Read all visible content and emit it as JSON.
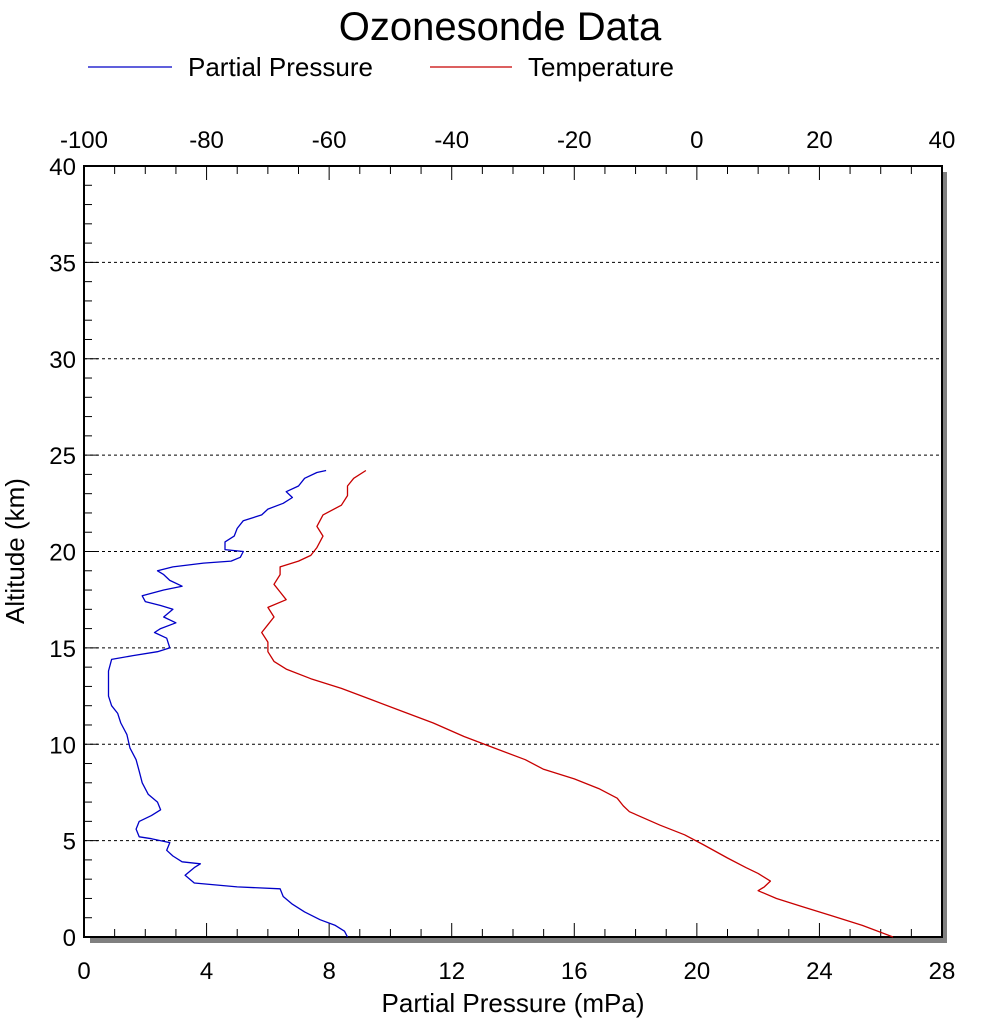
{
  "chart_data": {
    "type": "line",
    "title": "Ozonesonde Data",
    "xlabel": "Partial Pressure (mPa)",
    "ylabel": "Altitude (km)",
    "x_bottom_range": [
      0,
      28
    ],
    "x_top_range": [
      -100,
      40
    ],
    "ylim": [
      0,
      40
    ],
    "x_bottom_ticks": [
      "0",
      "4",
      "8",
      "12",
      "16",
      "20",
      "24",
      "28"
    ],
    "x_top_ticks": [
      "-100",
      "-80",
      "-60",
      "-40",
      "-20",
      "0",
      "20",
      "40"
    ],
    "y_ticks": [
      "0",
      "5",
      "10",
      "15",
      "20",
      "25",
      "30",
      "35",
      "40"
    ],
    "grid": "horizontal dotted",
    "legend_position": "top",
    "series": [
      {
        "name": "Partial Pressure",
        "axis": "bottom",
        "color": "#0000c8",
        "points": [
          [
            8.6,
            0.0
          ],
          [
            8.5,
            0.3
          ],
          [
            8.2,
            0.6
          ],
          [
            7.7,
            0.9
          ],
          [
            7.2,
            1.3
          ],
          [
            6.8,
            1.7
          ],
          [
            6.5,
            2.1
          ],
          [
            6.4,
            2.5
          ],
          [
            5.0,
            2.6
          ],
          [
            3.6,
            2.8
          ],
          [
            3.3,
            3.2
          ],
          [
            3.6,
            3.6
          ],
          [
            3.8,
            3.8
          ],
          [
            3.2,
            3.9
          ],
          [
            2.9,
            4.2
          ],
          [
            2.7,
            4.5
          ],
          [
            2.8,
            4.9
          ],
          [
            2.2,
            5.1
          ],
          [
            1.8,
            5.2
          ],
          [
            1.7,
            5.6
          ],
          [
            1.8,
            6.0
          ],
          [
            2.2,
            6.3
          ],
          [
            2.5,
            6.6
          ],
          [
            2.4,
            7.0
          ],
          [
            2.1,
            7.4
          ],
          [
            1.9,
            8.0
          ],
          [
            1.8,
            8.6
          ],
          [
            1.7,
            9.2
          ],
          [
            1.5,
            9.8
          ],
          [
            1.4,
            10.5
          ],
          [
            1.2,
            11.1
          ],
          [
            1.1,
            11.6
          ],
          [
            0.9,
            12.0
          ],
          [
            0.8,
            12.5
          ],
          [
            0.8,
            13.2
          ],
          [
            0.8,
            13.8
          ],
          [
            0.9,
            14.4
          ],
          [
            1.6,
            14.6
          ],
          [
            2.4,
            14.8
          ],
          [
            2.8,
            15.0
          ],
          [
            2.7,
            15.5
          ],
          [
            2.3,
            15.8
          ],
          [
            2.5,
            16.0
          ],
          [
            3.0,
            16.3
          ],
          [
            2.6,
            16.6
          ],
          [
            2.9,
            17.0
          ],
          [
            2.5,
            17.2
          ],
          [
            2.0,
            17.4
          ],
          [
            1.9,
            17.7
          ],
          [
            2.6,
            18.0
          ],
          [
            3.2,
            18.2
          ],
          [
            2.8,
            18.5
          ],
          [
            2.6,
            18.8
          ],
          [
            2.4,
            19.0
          ],
          [
            2.9,
            19.2
          ],
          [
            3.9,
            19.4
          ],
          [
            4.8,
            19.5
          ],
          [
            5.1,
            19.7
          ],
          [
            5.2,
            20.0
          ],
          [
            4.6,
            20.1
          ],
          [
            4.6,
            20.5
          ],
          [
            4.9,
            20.8
          ],
          [
            5.0,
            21.2
          ],
          [
            5.2,
            21.6
          ],
          [
            5.8,
            21.9
          ],
          [
            6.0,
            22.2
          ],
          [
            6.5,
            22.5
          ],
          [
            6.8,
            22.8
          ],
          [
            6.6,
            23.1
          ],
          [
            7.0,
            23.4
          ],
          [
            7.2,
            23.8
          ],
          [
            7.6,
            24.1
          ],
          [
            7.9,
            24.2
          ]
        ]
      },
      {
        "name": "Temperature",
        "axis": "top",
        "color": "#c80000",
        "points": [
          [
            32,
            0.0
          ],
          [
            27,
            0.6
          ],
          [
            22,
            1.1
          ],
          [
            17,
            1.6
          ],
          [
            13,
            2.0
          ],
          [
            10,
            2.4
          ],
          [
            11,
            2.6
          ],
          [
            12,
            2.9
          ],
          [
            10,
            3.3
          ],
          [
            8,
            3.6
          ],
          [
            5,
            4.1
          ],
          [
            1,
            4.8
          ],
          [
            -2,
            5.3
          ],
          [
            -6,
            5.8
          ],
          [
            -11,
            6.5
          ],
          [
            -12,
            6.8
          ],
          [
            -13,
            7.2
          ],
          [
            -16,
            7.7
          ],
          [
            -20,
            8.2
          ],
          [
            -25,
            8.7
          ],
          [
            -28,
            9.2
          ],
          [
            -33,
            9.8
          ],
          [
            -38,
            10.4
          ],
          [
            -43,
            11.1
          ],
          [
            -48,
            11.7
          ],
          [
            -53,
            12.3
          ],
          [
            -58,
            12.9
          ],
          [
            -63,
            13.4
          ],
          [
            -67,
            13.9
          ],
          [
            -69,
            14.3
          ],
          [
            -70,
            14.8
          ],
          [
            -70,
            15.3
          ],
          [
            -71,
            15.8
          ],
          [
            -70,
            16.2
          ],
          [
            -69,
            16.6
          ],
          [
            -70,
            17.1
          ],
          [
            -67,
            17.5
          ],
          [
            -68,
            17.9
          ],
          [
            -69,
            18.3
          ],
          [
            -68,
            18.8
          ],
          [
            -68,
            19.2
          ],
          [
            -65,
            19.5
          ],
          [
            -63,
            19.8
          ],
          [
            -62,
            20.2
          ],
          [
            -61,
            20.8
          ],
          [
            -62,
            21.3
          ],
          [
            -61,
            21.9
          ],
          [
            -58,
            22.4
          ],
          [
            -57,
            22.9
          ],
          [
            -57,
            23.4
          ],
          [
            -56,
            23.8
          ],
          [
            -54,
            24.2
          ]
        ]
      }
    ]
  }
}
